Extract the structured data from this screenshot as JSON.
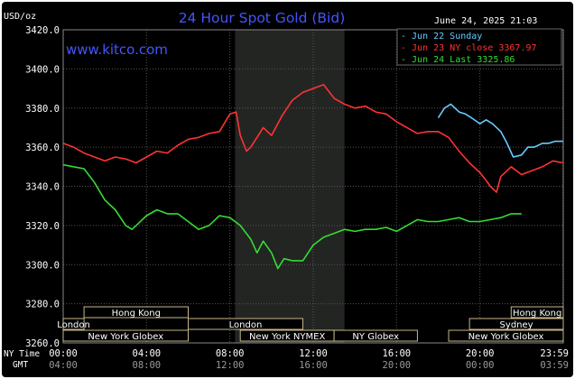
{
  "chart_data": {
    "type": "line",
    "title": "24 Hour Spot Gold (Bid)",
    "website": "www.kitco.com",
    "timestamp": "June 24, 2025 21:03",
    "unit_label": "USD/oz",
    "ylim": [
      3260,
      3420
    ],
    "y_ticks": [
      3420,
      3400,
      3380,
      3360,
      3340,
      3320,
      3300,
      3280,
      3260
    ],
    "y_tick_labels": [
      "3420.0",
      "3400.0",
      "3380.0",
      "3360.0",
      "3340.0",
      "3320.0",
      "3300.0",
      "3280.0",
      "3260.0"
    ],
    "xlim": [
      0,
      24
    ],
    "x_ticks": [
      0,
      4,
      8,
      12,
      16,
      20,
      23.983
    ],
    "ny_time_label": "NY Time",
    "gmt_label": "GMT",
    "ny_time_ticks": [
      "00:00",
      "04:00",
      "08:00",
      "12:00",
      "16:00",
      "20:00",
      "23:59"
    ],
    "gmt_ticks": [
      "04:00",
      "08:00",
      "12:00",
      "16:00",
      "20:00",
      "00:00",
      "03:59"
    ],
    "highlight_band": [
      8.25,
      13.5
    ],
    "legend": [
      {
        "text": "Jun 22 Sunday",
        "color": "#66ccff"
      },
      {
        "text": "Jun 23 NY close 3367.97",
        "color": "#ff3333"
      },
      {
        "text": "Jun 24 Last 3325.86",
        "color": "#33dd33"
      }
    ],
    "series": [
      {
        "name": "Jun 23 NY close 3367.97",
        "color": "#ff3333",
        "x": [
          0,
          0.5,
          1,
          1.5,
          2,
          2.5,
          3,
          3.5,
          4,
          4.5,
          5,
          5.5,
          6,
          6.5,
          7,
          7.5,
          8,
          8.3,
          8.5,
          8.8,
          9,
          9.3,
          9.6,
          10,
          10.5,
          11,
          11.5,
          12,
          12.5,
          13,
          13.5,
          14,
          14.5,
          15,
          15.5,
          16,
          16.5,
          17,
          17.5,
          18,
          18.5,
          19,
          19.5,
          20,
          20.3,
          20.5,
          20.8,
          21,
          21.5,
          22,
          22.5,
          23,
          23.5,
          24
        ],
        "y": [
          3362,
          3360,
          3357,
          3355,
          3353,
          3355,
          3354,
          3352,
          3355,
          3358,
          3357,
          3361,
          3364,
          3365,
          3367,
          3368,
          3377,
          3378,
          3366,
          3358,
          3360,
          3365,
          3370,
          3366,
          3376,
          3384,
          3388,
          3390,
          3392,
          3385,
          3382,
          3380,
          3381,
          3378,
          3377,
          3373,
          3370,
          3367,
          3368,
          3368,
          3365,
          3358,
          3352,
          3347,
          3343,
          3340,
          3337,
          3345,
          3350,
          3346,
          3348,
          3350,
          3353,
          3352
        ]
      },
      {
        "name": "Jun 24 Last 3325.86",
        "color": "#33dd33",
        "x": [
          0,
          0.5,
          1,
          1.5,
          2,
          2.5,
          3,
          3.3,
          3.5,
          4,
          4.5,
          5,
          5.5,
          6,
          6.5,
          7,
          7.5,
          8,
          8.5,
          9,
          9.3,
          9.6,
          10,
          10.3,
          10.6,
          11,
          11.5,
          12,
          12.5,
          13,
          13.5,
          14,
          14.5,
          15,
          15.5,
          16,
          16.5,
          17,
          17.5,
          18,
          18.5,
          19,
          19.5,
          20,
          20.5,
          21,
          21.5,
          22
        ],
        "y": [
          3351,
          3350,
          3349,
          3342,
          3333,
          3328,
          3320,
          3318,
          3320,
          3325,
          3328,
          3326,
          3326,
          3322,
          3318,
          3320,
          3325,
          3324,
          3320,
          3313,
          3306,
          3312,
          3306,
          3298,
          3303,
          3302,
          3302,
          3310,
          3314,
          3316,
          3318,
          3317,
          3318,
          3318,
          3319,
          3317,
          3320,
          3323,
          3322,
          3322,
          3323,
          3324,
          3322,
          3322,
          3323,
          3324,
          3326,
          3326
        ]
      },
      {
        "name": "Jun 22 Sunday",
        "color": "#66ccff",
        "x": [
          18,
          18.3,
          18.6,
          19,
          19.3,
          19.6,
          20,
          20.3,
          20.6,
          21,
          21.3,
          21.6,
          22,
          22.3,
          22.6,
          23,
          23.3,
          23.6,
          24
        ],
        "y": [
          3375,
          3380,
          3382,
          3378,
          3377,
          3375,
          3372,
          3374,
          3372,
          3368,
          3362,
          3355,
          3356,
          3360,
          3360,
          3362,
          3362,
          3363,
          3363
        ]
      }
    ],
    "sessions": [
      {
        "label": "Hong Kong",
        "row": 0,
        "start": 1,
        "end": 6
      },
      {
        "label": "London",
        "row": 1,
        "start": 0,
        "end": 1
      },
      {
        "label": "London",
        "row": 1,
        "start": 6,
        "end": 11.5
      },
      {
        "label": "New York Globex",
        "row": 2,
        "start": 0,
        "end": 6
      },
      {
        "label": "New York NYMEX",
        "row": 2,
        "start": 8.5,
        "end": 13
      },
      {
        "label": "NY Globex",
        "row": 2,
        "start": 13,
        "end": 17
      },
      {
        "label": "Hong Kong",
        "row": 0,
        "start": 21.5,
        "end": 24
      },
      {
        "label": "Sydney",
        "row": 1,
        "start": 19.5,
        "end": 24
      },
      {
        "label": "New York Globex",
        "row": 2,
        "start": 18.5,
        "end": 24
      }
    ]
  }
}
